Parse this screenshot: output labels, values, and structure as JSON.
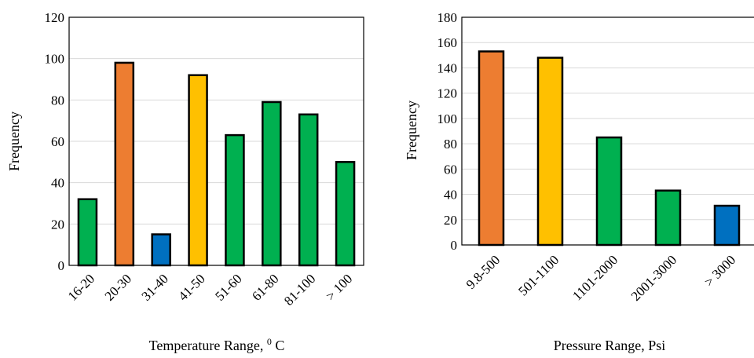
{
  "chart_data": [
    {
      "type": "bar",
      "xlabel": "Temperature Range, ",
      "xlabel_sup": "0",
      "xlabel_unit": " C",
      "ylabel": "Frequency",
      "ylim": [
        0,
        120
      ],
      "yticks": [
        0,
        20,
        40,
        60,
        80,
        100,
        120
      ],
      "grid": true,
      "categories": [
        "16-20",
        "20-30",
        "31-40",
        "41-50",
        "51-60",
        "61-80",
        "81-100",
        "> 100"
      ],
      "values": [
        32,
        98,
        15,
        92,
        63,
        79,
        73,
        50
      ],
      "colors": [
        "#00b050",
        "#ed7d31",
        "#0070c0",
        "#ffc000",
        "#00b050",
        "#00b050",
        "#00b050",
        "#00b050"
      ]
    },
    {
      "type": "bar",
      "xlabel": "Pressure Range, Psi",
      "ylabel": "Frequency",
      "ylim": [
        0,
        180
      ],
      "yticks": [
        0,
        20,
        40,
        60,
        80,
        100,
        120,
        140,
        160,
        180
      ],
      "grid": true,
      "categories": [
        "9.8-500",
        "501-1100",
        "1101-2000",
        "2001-3000",
        "> 3000"
      ],
      "values": [
        153,
        148,
        85,
        43,
        31
      ],
      "colors": [
        "#ed7d31",
        "#ffc000",
        "#00b050",
        "#00b050",
        "#0070c0"
      ]
    }
  ]
}
